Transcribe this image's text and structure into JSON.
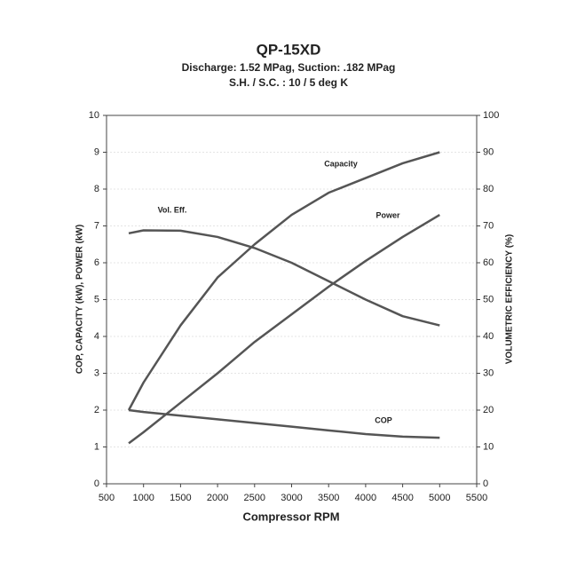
{
  "chart_data": {
    "type": "line",
    "title": "QP-15XD",
    "subtitle": [
      "Discharge: 1.52 MPag, Suction: .182 MPag",
      "S.H. / S.C. : 10 / 5 deg K"
    ],
    "x_label": "Compressor RPM",
    "y_label": "COP, CAPACITY (kW), POWER (kW)",
    "y2_label": "VOLUMETRIC EFFICIENCY (%)",
    "x": [
      800,
      1000,
      1500,
      2000,
      2500,
      3000,
      3500,
      4000,
      4500,
      5000
    ],
    "series": [
      {
        "name": "Capacity",
        "color": "#555555",
        "values": [
          2.0,
          2.75,
          4.3,
          5.6,
          6.5,
          7.3,
          7.9,
          8.3,
          8.7,
          9.0
        ]
      },
      {
        "name": "Power",
        "color": "#555555",
        "values": [
          1.1,
          1.4,
          2.2,
          3.0,
          3.85,
          4.6,
          5.35,
          6.05,
          6.7,
          7.3
        ]
      },
      {
        "name": "Vol. Eff.",
        "color": "#555555",
        "axis": "y2",
        "values": [
          68,
          68.8,
          68.7,
          67,
          64,
          60,
          55,
          50,
          45.5,
          43
        ]
      },
      {
        "name": "COP",
        "color": "#555555",
        "values": [
          2.0,
          1.95,
          1.85,
          1.75,
          1.65,
          1.55,
          1.45,
          1.35,
          1.28,
          1.25
        ]
      }
    ],
    "xlim": [
      500,
      5500
    ],
    "xticks": [
      500,
      1000,
      1500,
      2000,
      2500,
      3000,
      3500,
      4000,
      4500,
      5000,
      5500
    ],
    "ylim": [
      0,
      10
    ],
    "yticks": [
      0,
      1,
      2,
      3,
      4,
      5,
      6,
      7,
      8,
      9,
      10
    ],
    "y2lim": [
      0,
      100
    ],
    "y2ticks": [
      0,
      10,
      20,
      30,
      40,
      50,
      60,
      70,
      80,
      90,
      100
    ],
    "grid": true
  }
}
